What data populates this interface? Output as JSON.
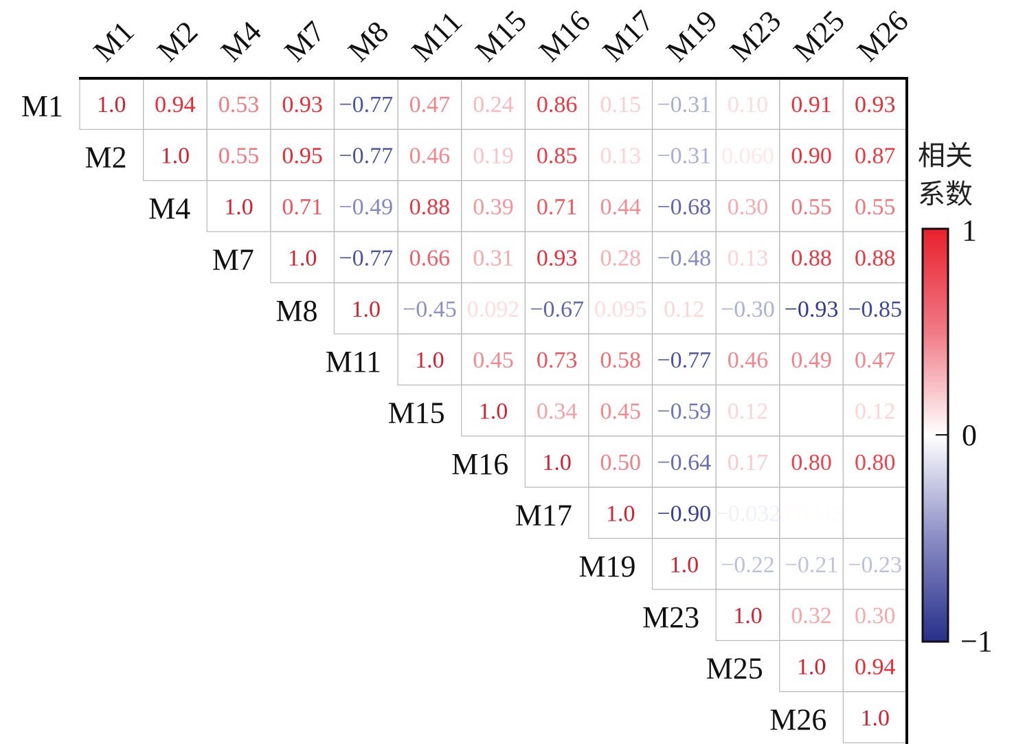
{
  "chart_data": {
    "type": "heatmap",
    "subtype": "upper-triangular correlation matrix",
    "labels": [
      "M1",
      "M2",
      "M4",
      "M7",
      "M8",
      "M11",
      "M15",
      "M16",
      "M17",
      "M19",
      "M23",
      "M25",
      "M26"
    ],
    "matrix": [
      [
        "1.0",
        "0.94",
        "0.53",
        "0.93",
        "-0.77",
        "0.47",
        "0.24",
        "0.86",
        "0.15",
        "-0.31",
        "0.10",
        "0.91",
        "0.93"
      ],
      [
        null,
        "1.0",
        "0.55",
        "0.95",
        "-0.77",
        "0.46",
        "0.19",
        "0.85",
        "0.13",
        "-0.31",
        "0.060",
        "0.90",
        "0.87"
      ],
      [
        null,
        null,
        "1.0",
        "0.71",
        "-0.49",
        "0.88",
        "0.39",
        "0.71",
        "0.44",
        "-0.68",
        "0.30",
        "0.55",
        "0.55"
      ],
      [
        null,
        null,
        null,
        "1.0",
        "-0.77",
        "0.66",
        "0.31",
        "0.93",
        "0.28",
        "-0.48",
        "0.13",
        "0.88",
        "0.88"
      ],
      [
        null,
        null,
        null,
        null,
        "1.0",
        "-0.45",
        "0.092",
        "-0.67",
        "0.095",
        "0.12",
        "-0.30",
        "-0.93",
        "-0.85"
      ],
      [
        null,
        null,
        null,
        null,
        null,
        "1.0",
        "0.45",
        "0.73",
        "0.58",
        "-0.77",
        "0.46",
        "0.49",
        "0.47"
      ],
      [
        null,
        null,
        null,
        null,
        null,
        null,
        "1.0",
        "0.34",
        "0.45",
        "-0.59",
        "0.12",
        "",
        "0.12"
      ],
      [
        null,
        null,
        null,
        null,
        null,
        null,
        null,
        "1.0",
        "0.50",
        "-0.64",
        "0.17",
        "0.80",
        "0.80"
      ],
      [
        null,
        null,
        null,
        null,
        null,
        null,
        null,
        null,
        "1.0",
        "-0.90",
        "-0.032",
        "0.0045",
        ""
      ],
      [
        null,
        null,
        null,
        null,
        null,
        null,
        null,
        null,
        null,
        "1.0",
        "-0.22",
        "-0.21",
        "-0.23"
      ],
      [
        null,
        null,
        null,
        null,
        null,
        null,
        null,
        null,
        null,
        null,
        "1.0",
        "0.32",
        "0.30"
      ],
      [
        null,
        null,
        null,
        null,
        null,
        null,
        null,
        null,
        null,
        null,
        null,
        "1.0",
        "0.94"
      ],
      [
        null,
        null,
        null,
        null,
        null,
        null,
        null,
        null,
        null,
        null,
        null,
        null,
        "1.0"
      ]
    ],
    "colorbar": {
      "title_line1": "相关",
      "title_line2": "系数",
      "ticks": [
        "1",
        "0",
        "−1"
      ],
      "range": [
        -1,
        1
      ],
      "colors": {
        "positive": "#e8202c",
        "zero": "#ffffff",
        "negative": "#262f8a"
      }
    },
    "diagonal_text_color": "#d42030"
  }
}
